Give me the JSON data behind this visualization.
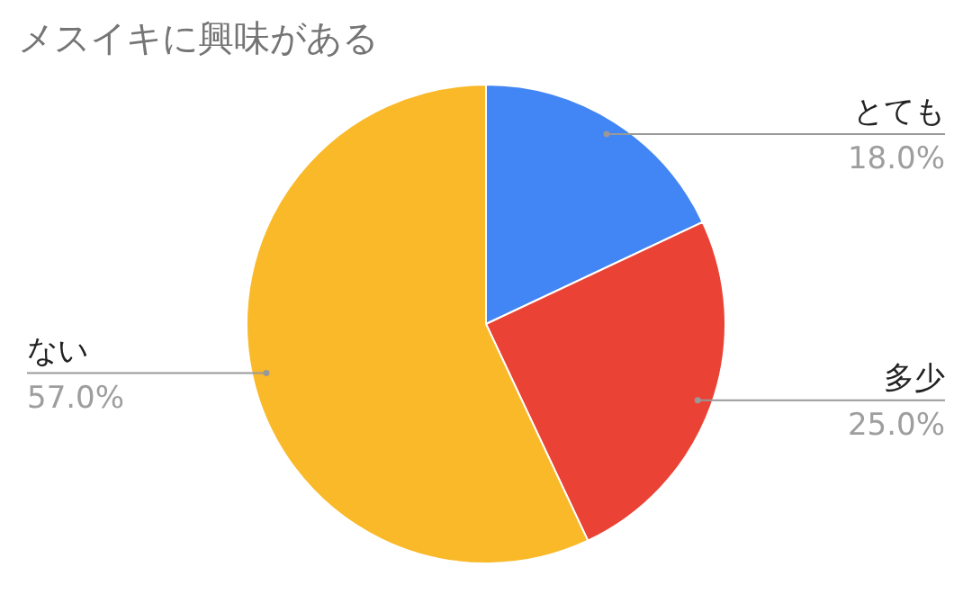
{
  "chart_data": {
    "type": "pie",
    "title": "メスイキに興味がある",
    "categories": [
      "とても",
      "多少",
      "ない"
    ],
    "values": [
      18.0,
      25.0,
      57.0
    ],
    "value_labels": [
      "18.0%",
      "25.0%",
      "57.0%"
    ],
    "colors": [
      "#4285f4",
      "#ea4335",
      "#f9b928"
    ]
  }
}
